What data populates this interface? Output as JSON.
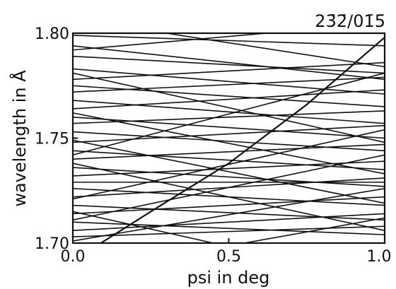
{
  "chart_data": {
    "type": "line",
    "title": "23̄2̄/01̄5̄",
    "xlabel": "psi in deg",
    "ylabel": "wavelength in Å",
    "xlim": [
      0.0,
      1.0
    ],
    "ylim": [
      1.7,
      1.8
    ],
    "x_ticks": [
      "0.0",
      "0.5",
      "1.0"
    ],
    "y_ticks": [
      "1.70",
      "1.75",
      "1.80"
    ],
    "grid": false,
    "legend": "none",
    "line_color": "#111111",
    "series": [
      {
        "x": [
          0.09,
          0.25,
          0.5,
          0.75,
          1.0
        ],
        "y": [
          1.7,
          1.715,
          1.738,
          1.766,
          1.798
        ]
      },
      {
        "x": [
          0.0,
          1.0
        ],
        "y": [
          1.794,
          1.778
        ]
      },
      {
        "x": [
          0.0,
          1.0
        ],
        "y": [
          1.789,
          1.781
        ]
      },
      {
        "x": [
          0.0,
          1.0
        ],
        "y": [
          1.783,
          1.771
        ]
      },
      {
        "x": [
          0.0,
          1.0
        ],
        "y": [
          1.778,
          1.786
        ]
      },
      {
        "x": [
          0.0,
          1.0
        ],
        "y": [
          1.775,
          1.765
        ]
      },
      {
        "x": [
          0.0,
          1.0
        ],
        "y": [
          1.772,
          1.779
        ]
      },
      {
        "x": [
          0.0,
          1.0
        ],
        "y": [
          1.768,
          1.757
        ]
      },
      {
        "x": [
          0.0,
          1.0
        ],
        "y": [
          1.764,
          1.773
        ]
      },
      {
        "x": [
          0.0,
          1.0
        ],
        "y": [
          1.76,
          1.75
        ]
      },
      {
        "x": [
          0.0,
          1.0
        ],
        "y": [
          1.757,
          1.763
        ]
      },
      {
        "x": [
          0.0,
          1.0
        ],
        "y": [
          1.753,
          1.744
        ]
      },
      {
        "x": [
          0.0,
          1.0
        ],
        "y": [
          1.748,
          1.756
        ]
      },
      {
        "x": [
          0.0,
          1.0
        ],
        "y": [
          1.744,
          1.735
        ]
      },
      {
        "x": [
          0.0,
          1.0
        ],
        "y": [
          1.74,
          1.747
        ]
      },
      {
        "x": [
          0.0,
          1.0
        ],
        "y": [
          1.736,
          1.727
        ]
      },
      {
        "x": [
          0.0,
          1.0
        ],
        "y": [
          1.732,
          1.739
        ]
      },
      {
        "x": [
          0.0,
          1.0
        ],
        "y": [
          1.729,
          1.729
        ]
      },
      {
        "x": [
          0.0,
          1.0
        ],
        "y": [
          1.726,
          1.718
        ]
      },
      {
        "x": [
          0.0,
          1.0
        ],
        "y": [
          1.722,
          1.731
        ]
      },
      {
        "x": [
          0.0,
          1.0
        ],
        "y": [
          1.718,
          1.711
        ]
      },
      {
        "x": [
          0.0,
          1.0
        ],
        "y": [
          1.714,
          1.722
        ]
      },
      {
        "x": [
          0.0,
          1.0
        ],
        "y": [
          1.71,
          1.704
        ]
      },
      {
        "x": [
          0.0,
          1.0
        ],
        "y": [
          1.706,
          1.714
        ]
      },
      {
        "x": [
          0.0,
          1.0
        ],
        "y": [
          1.703,
          1.708
        ]
      },
      {
        "x": [
          0.0,
          1.0
        ],
        "y": [
          1.799,
          1.794
        ]
      },
      {
        "x": [
          0.0,
          0.62
        ],
        "y": [
          1.792,
          1.8
        ]
      },
      {
        "x": [
          0.3,
          1.0
        ],
        "y": [
          1.8,
          1.784
        ]
      },
      {
        "x": [
          0.0,
          1.0
        ],
        "y": [
          1.742,
          1.781
        ]
      },
      {
        "x": [
          0.0,
          1.0
        ],
        "y": [
          1.781,
          1.748
        ]
      },
      {
        "x": [
          0.0,
          1.0
        ],
        "y": [
          1.721,
          1.754
        ]
      },
      {
        "x": [
          0.0,
          1.0
        ],
        "y": [
          1.762,
          1.733
        ]
      },
      {
        "x": [
          0.0,
          1.0
        ],
        "y": [
          1.701,
          1.726
        ]
      },
      {
        "x": [
          0.0,
          1.0
        ],
        "y": [
          1.738,
          1.706
        ]
      },
      {
        "x": [
          0.0,
          1.0
        ],
        "y": [
          1.711,
          1.742
        ]
      },
      {
        "x": [
          0.0,
          1.0
        ],
        "y": [
          1.749,
          1.719
        ]
      },
      {
        "x": [
          0.0,
          0.45
        ],
        "y": [
          1.715,
          1.7
        ]
      },
      {
        "x": [
          0.55,
          1.0
        ],
        "y": [
          1.7,
          1.712
        ]
      }
    ]
  }
}
